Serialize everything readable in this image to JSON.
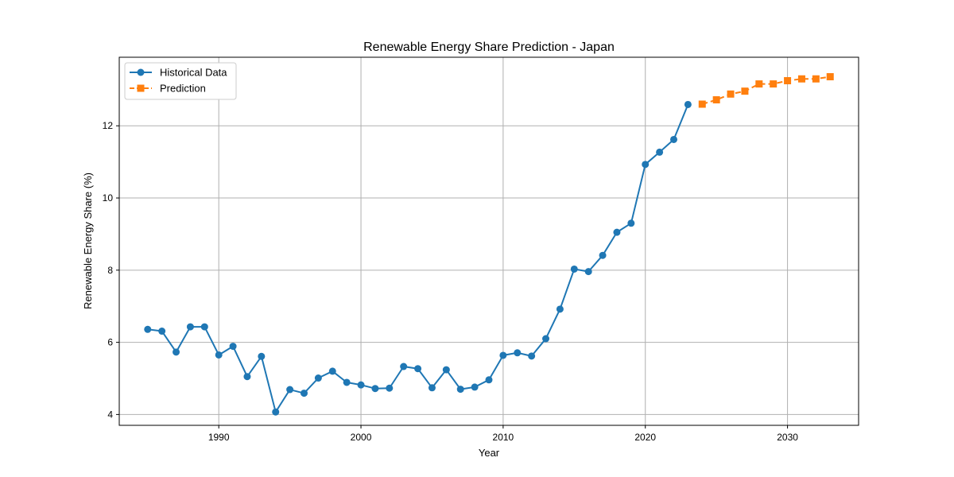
{
  "chart_data": {
    "type": "line",
    "title": "Renewable Energy Share Prediction - Japan",
    "xlabel": "Year",
    "ylabel": "Renewable Energy Share (%)",
    "xlim": [
      1983,
      2035
    ],
    "ylim": [
      3.7,
      13.9
    ],
    "xticks": [
      1990,
      2000,
      2010,
      2020,
      2030
    ],
    "yticks": [
      4,
      6,
      8,
      10,
      12
    ],
    "grid": true,
    "legend_position": "top-left",
    "series": [
      {
        "name": "Historical Data",
        "color": "#1f77b4",
        "marker": "circle",
        "linestyle": "solid",
        "x": [
          1985,
          1986,
          1987,
          1988,
          1989,
          1990,
          1991,
          1992,
          1993,
          1994,
          1995,
          1996,
          1997,
          1998,
          1999,
          2000,
          2001,
          2002,
          2003,
          2004,
          2005,
          2006,
          2007,
          2008,
          2009,
          2010,
          2011,
          2012,
          2013,
          2014,
          2015,
          2016,
          2017,
          2018,
          2019,
          2020,
          2021,
          2022,
          2023
        ],
        "y": [
          6.36,
          6.31,
          5.73,
          6.43,
          6.43,
          5.65,
          5.89,
          5.05,
          5.61,
          4.07,
          4.69,
          4.59,
          5.01,
          5.2,
          4.89,
          4.82,
          4.72,
          4.73,
          5.33,
          5.27,
          4.74,
          5.24,
          4.7,
          4.76,
          4.96,
          5.64,
          5.71,
          5.62,
          6.1,
          6.92,
          8.03,
          7.96,
          8.41,
          9.05,
          9.3,
          10.93,
          11.27,
          11.62,
          12.59
        ]
      },
      {
        "name": "Prediction",
        "color": "#ff7f0e",
        "marker": "square",
        "linestyle": "dashed",
        "x": [
          2024,
          2025,
          2026,
          2027,
          2028,
          2029,
          2030,
          2031,
          2032,
          2033
        ],
        "y": [
          12.6,
          12.72,
          12.88,
          12.96,
          13.16,
          13.16,
          13.25,
          13.3,
          13.3,
          13.36
        ]
      }
    ]
  }
}
